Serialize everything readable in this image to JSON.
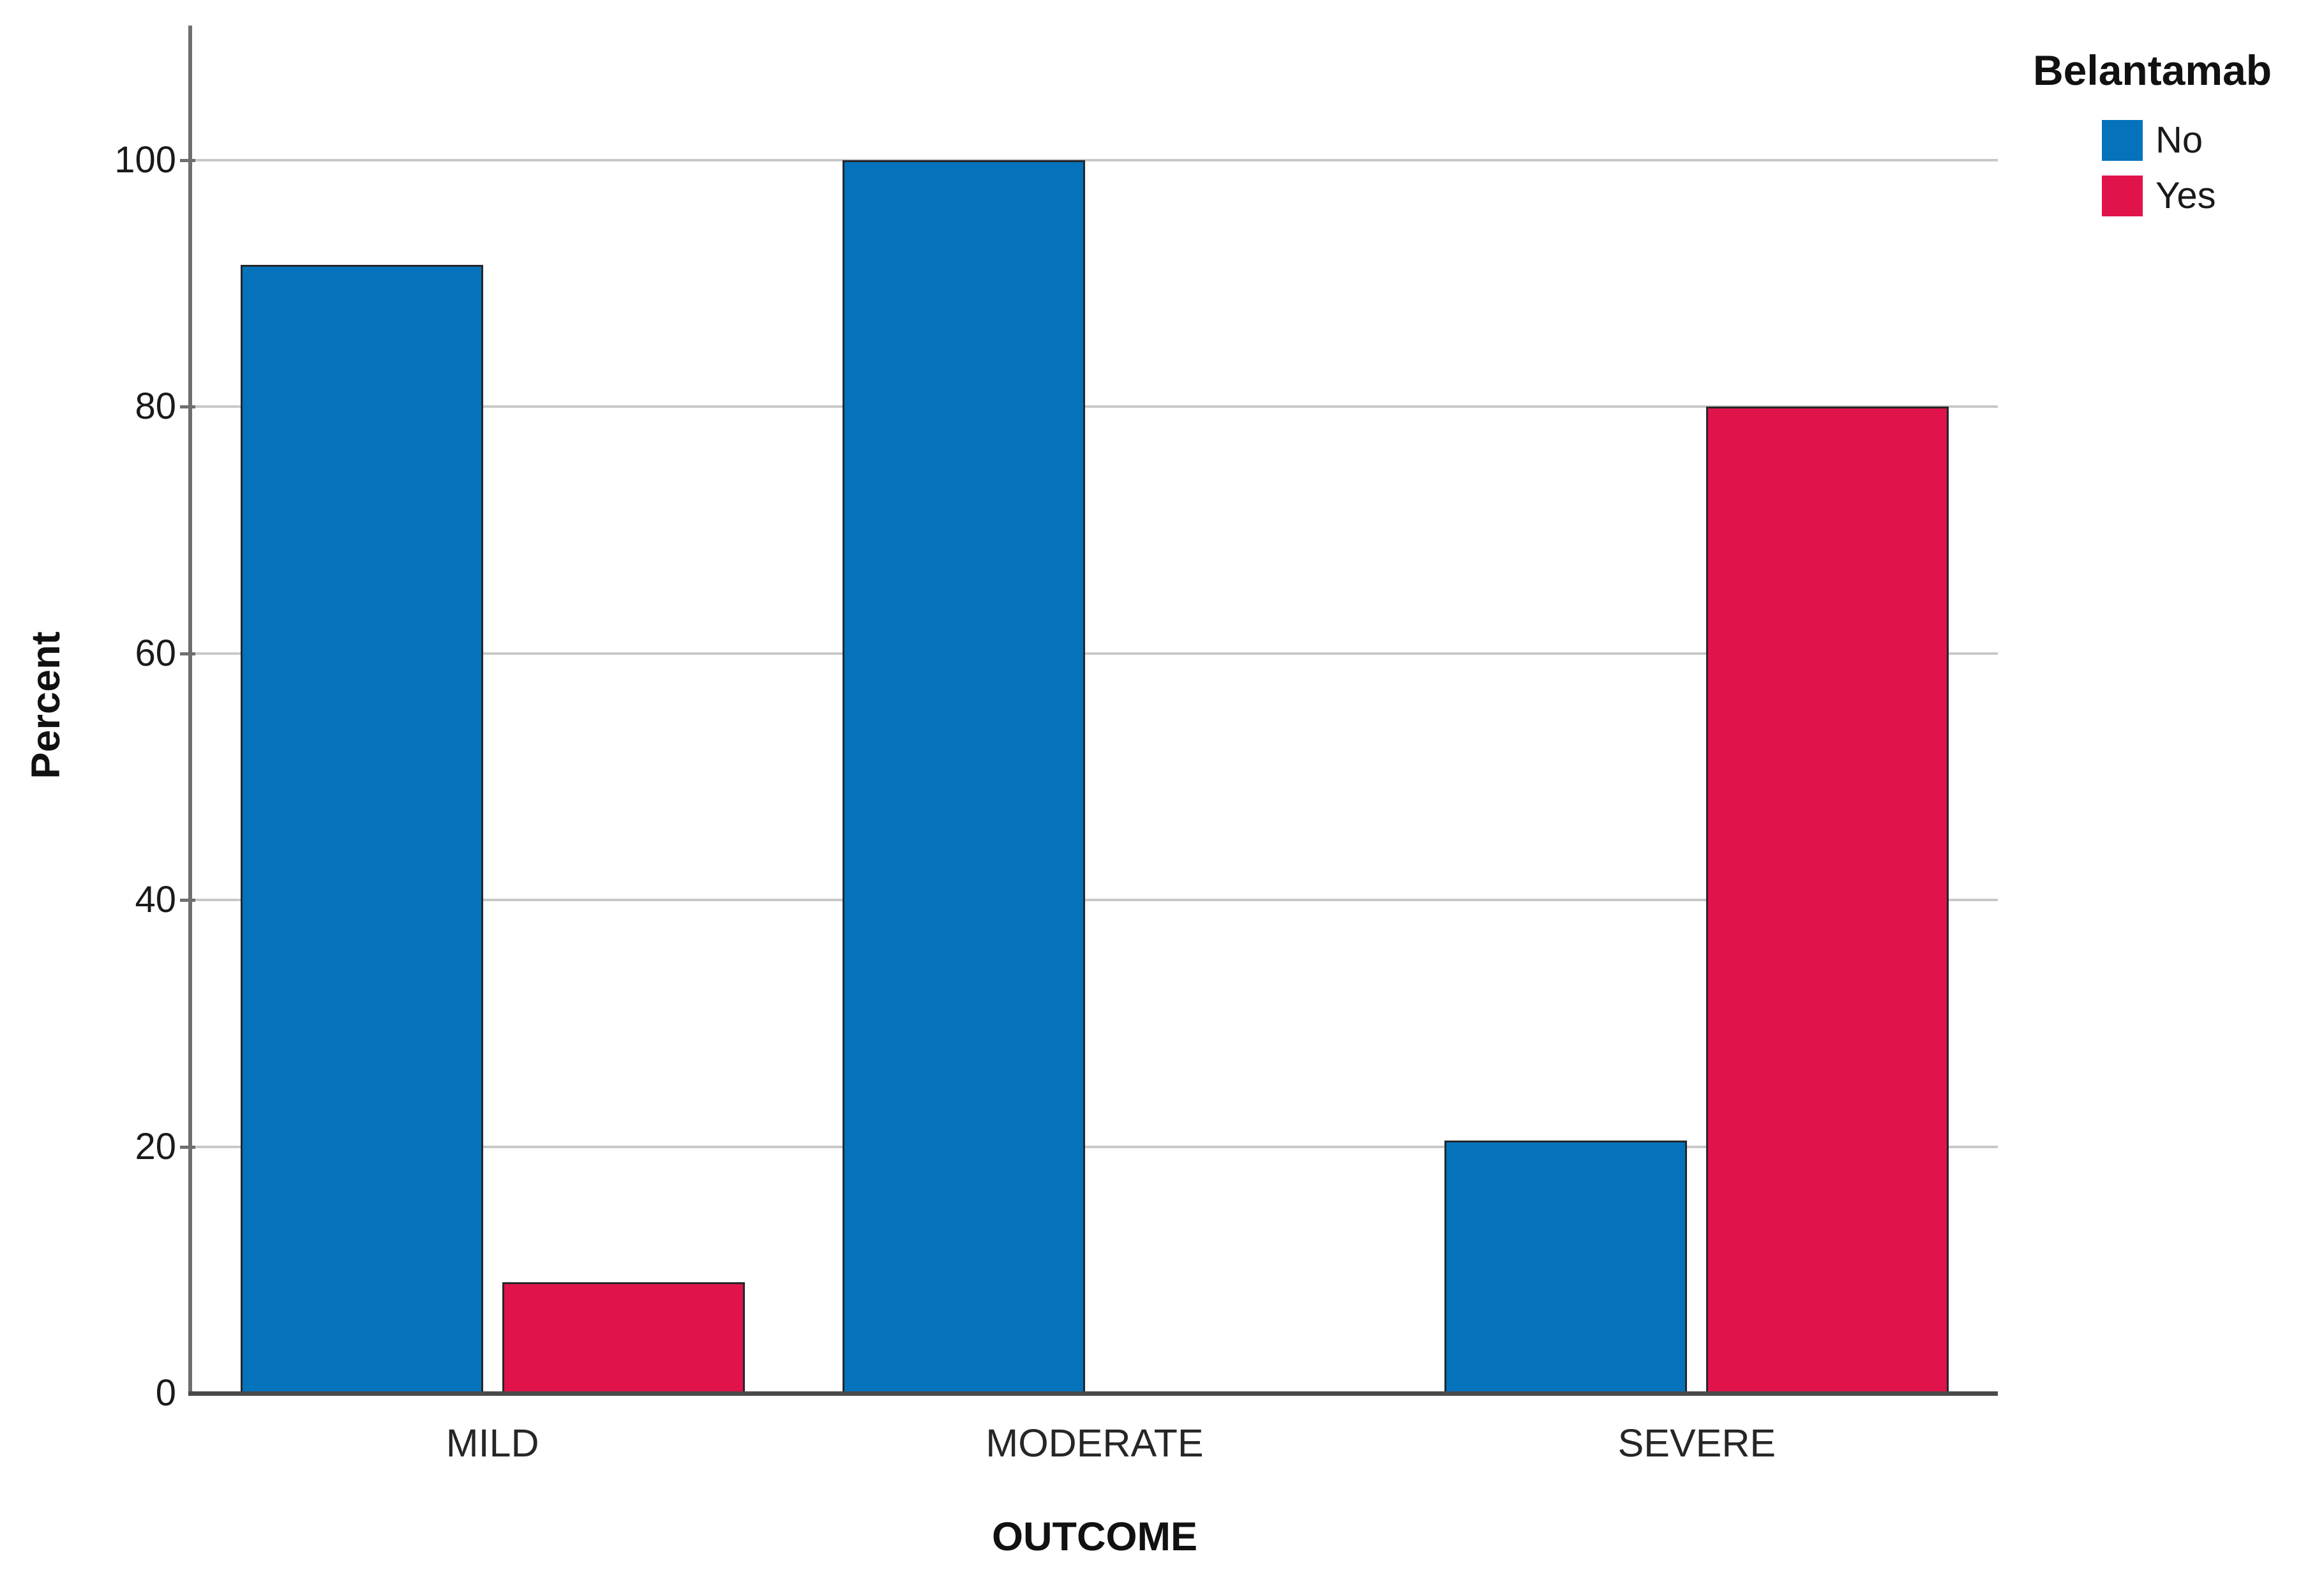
{
  "chart_data": {
    "type": "bar",
    "title": "",
    "categories": [
      "MILD",
      "MODERATE",
      "SEVERE"
    ],
    "series": [
      {
        "name": "No",
        "color": "#0473BC",
        "values": [
          91.5,
          100,
          20.5
        ]
      },
      {
        "name": "Yes",
        "color": "#E1134B",
        "values": [
          9,
          0,
          80
        ]
      }
    ],
    "xlabel": "OUTCOME",
    "ylabel": "Percent",
    "ylim": [
      0,
      110.9
    ],
    "yticks": [
      0,
      20,
      40,
      60,
      80,
      100
    ],
    "grid": "horizontal-only",
    "legend": {
      "title": "Belantamab",
      "position": "top-right-outside"
    }
  },
  "colors": {
    "background": "#FFFFFF",
    "gridline": "#C9C9C9",
    "y_axis": "#6F6F6F",
    "x_axis": "#4A4A4A",
    "tick_text": "#1A1A1A",
    "category_text": "#262626",
    "title_text": "#111111",
    "bar_outline": "#26262B"
  }
}
